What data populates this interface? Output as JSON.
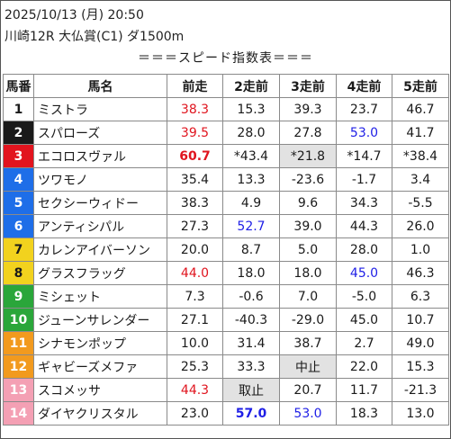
{
  "header": {
    "datetime": "2025/10/13 (月) 20:50",
    "race": "川崎12R 大仏賞(C1) ダ1500m",
    "table_title": "＝＝＝スピード指数表＝＝＝"
  },
  "columns": [
    "馬番",
    "馬名",
    "前走",
    "2走前",
    "3走前",
    "4走前",
    "5走前"
  ],
  "post_colors": {
    "1": {
      "bg": "#ffffff",
      "fg": "#1a1a1a"
    },
    "2": {
      "bg": "#1a1a1a",
      "fg": "#ffffff"
    },
    "3": {
      "bg": "#e2141e",
      "fg": "#ffffff"
    },
    "4": {
      "bg": "#1e6ee8",
      "fg": "#ffffff"
    },
    "5": {
      "bg": "#f2d21e",
      "fg": "#1a1a1a"
    },
    "6": {
      "bg": "#2aa63a",
      "fg": "#ffffff"
    },
    "7": {
      "bg": "#f29a1e",
      "fg": "#ffffff"
    },
    "8": {
      "bg": "#f4a0b4",
      "fg": "#ffffff"
    }
  },
  "rows": [
    {
      "no": "1",
      "post": 1,
      "name": "ミストラ",
      "v": [
        "38.3",
        "15.3",
        "39.3",
        "23.7",
        "46.7"
      ],
      "styles": [
        "red",
        "",
        "",
        "",
        ""
      ]
    },
    {
      "no": "2",
      "post": 2,
      "name": "スパローズ",
      "v": [
        "39.5",
        "28.0",
        "27.8",
        "53.0",
        "41.7"
      ],
      "styles": [
        "red",
        "",
        "",
        "blue",
        ""
      ]
    },
    {
      "no": "3",
      "post": 3,
      "name": "エコロスヴァル",
      "v": [
        "60.7",
        "*43.4",
        "*21.8",
        "*14.7",
        "*38.4"
      ],
      "styles": [
        "red bold",
        "",
        "shade",
        "",
        ""
      ]
    },
    {
      "no": "4",
      "post": 4,
      "name": "ツワモノ",
      "v": [
        "35.4",
        "13.3",
        "-23.6",
        "-1.7",
        "3.4"
      ],
      "styles": [
        "",
        "",
        "",
        "",
        ""
      ]
    },
    {
      "no": "5",
      "post": 4,
      "name": "セクシーウィドー",
      "v": [
        "38.3",
        "4.9",
        "9.6",
        "34.3",
        "-5.5"
      ],
      "styles": [
        "",
        "",
        "",
        "",
        ""
      ]
    },
    {
      "no": "6",
      "post": 4,
      "name": "アンティシパル",
      "v": [
        "27.3",
        "52.7",
        "39.0",
        "44.3",
        "26.0"
      ],
      "styles": [
        "",
        "blue",
        "",
        "",
        ""
      ]
    },
    {
      "no": "7",
      "post": 5,
      "name": "カレンアイバーソン",
      "v": [
        "20.0",
        "8.7",
        "5.0",
        "28.0",
        "1.0"
      ],
      "styles": [
        "",
        "",
        "",
        "",
        ""
      ]
    },
    {
      "no": "8",
      "post": 5,
      "name": "グラスフラッグ",
      "v": [
        "44.0",
        "18.0",
        "18.0",
        "45.0",
        "46.3"
      ],
      "styles": [
        "red",
        "",
        "",
        "blue",
        ""
      ]
    },
    {
      "no": "9",
      "post": 6,
      "name": "ミシェット",
      "v": [
        "7.3",
        "-0.6",
        "7.0",
        "-5.0",
        "6.3"
      ],
      "styles": [
        "",
        "",
        "",
        "",
        ""
      ]
    },
    {
      "no": "10",
      "post": 6,
      "name": "ジューンサレンダー",
      "v": [
        "27.1",
        "-40.3",
        "-29.0",
        "45.0",
        "10.7"
      ],
      "styles": [
        "",
        "",
        "",
        "",
        ""
      ]
    },
    {
      "no": "11",
      "post": 7,
      "name": "シナモンポップ",
      "v": [
        "10.0",
        "31.4",
        "38.7",
        "2.7",
        "49.0"
      ],
      "styles": [
        "",
        "",
        "",
        "",
        ""
      ]
    },
    {
      "no": "12",
      "post": 7,
      "name": "ギャビーズメファ",
      "v": [
        "25.3",
        "33.3",
        "中止",
        "22.0",
        "15.3"
      ],
      "styles": [
        "",
        "",
        "shade",
        "",
        ""
      ]
    },
    {
      "no": "13",
      "post": 8,
      "name": "スコメッサ",
      "v": [
        "44.3",
        "取止",
        "20.7",
        "11.7",
        "-21.3"
      ],
      "styles": [
        "red",
        "shade",
        "",
        "",
        ""
      ]
    },
    {
      "no": "14",
      "post": 8,
      "name": "ダイヤクリスタル",
      "v": [
        "23.0",
        "57.0",
        "53.0",
        "18.3",
        "13.0"
      ],
      "styles": [
        "",
        "blue bold",
        "blue",
        "",
        ""
      ]
    }
  ]
}
